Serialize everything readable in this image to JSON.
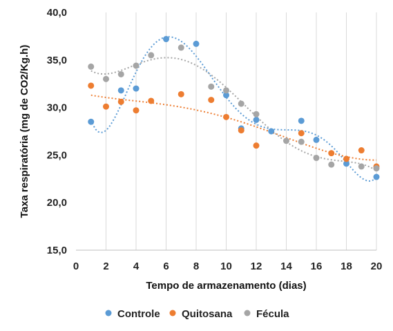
{
  "chart_data": {
    "type": "scatter",
    "xlabel": "Tempo de armazenamento (dias)",
    "ylabel": "Taxa respiratória  (mg de CO2/Kg.h)",
    "xlim": [
      0,
      20
    ],
    "ylim": [
      15,
      40
    ],
    "x_ticks": [
      "0",
      "2",
      "4",
      "6",
      "8",
      "10",
      "12",
      "14",
      "16",
      "18",
      "20"
    ],
    "y_ticks": [
      "15,0",
      "20,0",
      "25,0",
      "30,0",
      "35,0",
      "40,0"
    ],
    "grid": "vertical",
    "legend_position": "bottom",
    "trendline": "polynomial",
    "series": [
      {
        "name": "Controle",
        "color": "#5b9bd5",
        "x": [
          1,
          3,
          4,
          6,
          8,
          10,
          11,
          12,
          13,
          15,
          16,
          18,
          20
        ],
        "y": [
          28.5,
          31.8,
          32.0,
          37.2,
          36.7,
          31.3,
          27.8,
          28.7,
          27.5,
          28.6,
          26.6,
          24.1,
          22.7
        ]
      },
      {
        "name": "Quitosana",
        "color": "#ed7d31",
        "x": [
          1,
          2,
          3,
          4,
          5,
          7,
          9,
          10,
          11,
          12,
          15,
          17,
          18,
          19,
          20
        ],
        "y": [
          32.3,
          30.1,
          30.6,
          29.7,
          30.7,
          31.4,
          30.8,
          29.0,
          27.6,
          26.0,
          27.3,
          25.2,
          24.6,
          25.5,
          23.8
        ]
      },
      {
        "name": "Fécula",
        "color": "#a5a5a5",
        "x": [
          1,
          2,
          3,
          4,
          5,
          7,
          9,
          10,
          11,
          12,
          14,
          15,
          16,
          17,
          19,
          20
        ],
        "y": [
          34.3,
          33.0,
          33.5,
          34.4,
          35.5,
          36.3,
          32.2,
          31.8,
          30.4,
          29.3,
          26.5,
          26.4,
          24.7,
          24.0,
          23.8,
          23.6
        ]
      }
    ]
  }
}
